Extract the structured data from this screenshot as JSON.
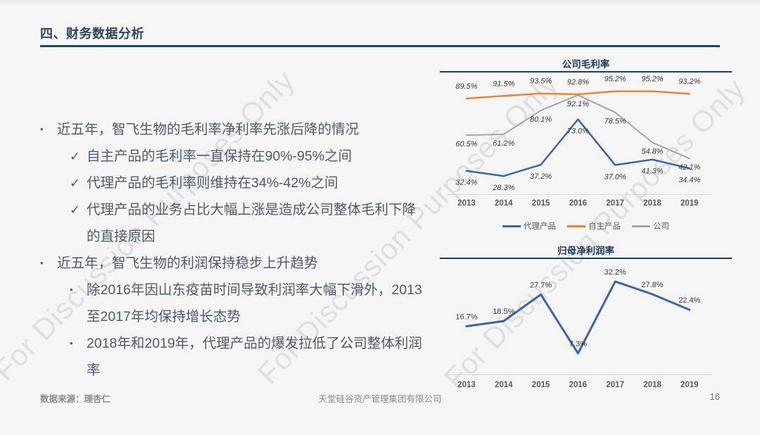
{
  "slide": {
    "title": "四、财务数据分析",
    "watermark": "For Discussion Purposes Only",
    "page_number": "16",
    "footer_source": "数据来源：理杏仁",
    "footer_company": "天堂硅谷资产管理集团有限公司"
  },
  "bullets": [
    {
      "level": 1,
      "marker": "dot",
      "text": "近五年，智飞生物的毛利率净利率先涨后降的情况"
    },
    {
      "level": 2,
      "marker": "check",
      "text": "自主产品的毛利率一直保持在90%-95%之间"
    },
    {
      "level": 2,
      "marker": "check",
      "text": "代理产品的毛利率则维持在34%-42%之间"
    },
    {
      "level": 2,
      "marker": "check",
      "text": "代理产品的业务占比大幅上涨是造成公司整体毛利下降的直接原因"
    },
    {
      "level": 1,
      "marker": "dot",
      "text": "近五年，智飞生物的利润保持稳步上升趋势"
    },
    {
      "level": 2,
      "marker": "dot",
      "text": "除2016年因山东疫苗时间导致利润率大幅下滑外，2013至2017年均保持增长态势"
    },
    {
      "level": 2,
      "marker": "dot",
      "text": "2018年和2019年，代理产品的爆发拉低了公司整体利润率"
    }
  ],
  "chart_data": [
    {
      "type": "line",
      "title": "公司毛利率",
      "categories": [
        "2013",
        "2014",
        "2015",
        "2016",
        "2017",
        "2018",
        "2019"
      ],
      "series": [
        {
          "name": "代理产品",
          "color": "#3e63ad",
          "values": [
            32.4,
            28.3,
            37.2,
            73.0,
            37.0,
            41.3,
            34.4
          ]
        },
        {
          "name": "自主产品",
          "color": "#ed8434",
          "values": [
            89.5,
            91.5,
            93.5,
            92.8,
            95.2,
            95.2,
            93.2
          ]
        },
        {
          "name": "公司",
          "color": "#a5a5a5",
          "values": [
            60.5,
            61.2,
            80.1,
            92.1,
            78.5,
            54.8,
            42.1
          ]
        }
      ],
      "value_format": "percent_1dp",
      "data_labels": true,
      "grid": false,
      "legend_position": "bottom",
      "ylim": [
        25,
        100
      ]
    },
    {
      "type": "line",
      "title": "归母净利润率",
      "categories": [
        "2013",
        "2014",
        "2015",
        "2016",
        "2017",
        "2018",
        "2019"
      ],
      "series": [
        {
          "name": "归母净利润率",
          "color": "#3e63ad",
          "values": [
            16.7,
            18.5,
            27.7,
            7.3,
            32.2,
            27.8,
            22.4
          ]
        }
      ],
      "value_format": "percent_1dp",
      "data_labels": true,
      "grid": false,
      "legend_position": "none",
      "ylim": [
        5,
        34
      ]
    }
  ]
}
